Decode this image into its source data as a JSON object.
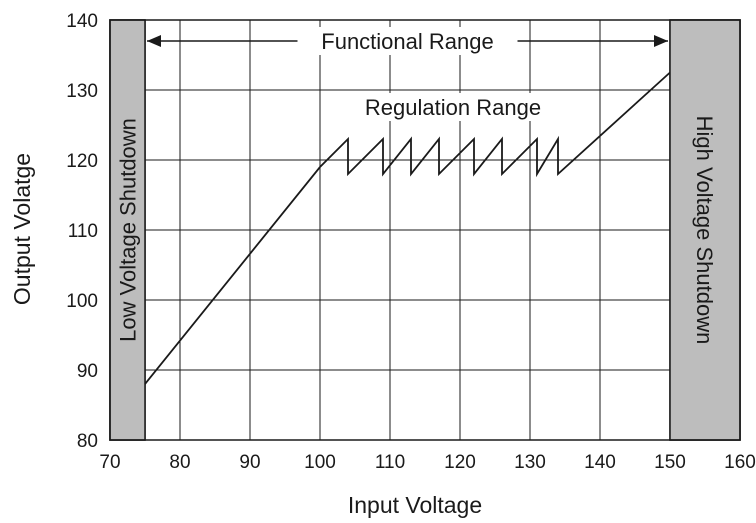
{
  "chart_data": {
    "type": "line",
    "title": "",
    "xlabel": "Input Voltage",
    "ylabel": "Output Volatge",
    "xlim": [
      70,
      160
    ],
    "ylim": [
      80,
      140
    ],
    "xticks": [
      70,
      80,
      90,
      100,
      110,
      120,
      130,
      140,
      150,
      160
    ],
    "yticks": [
      80,
      90,
      100,
      110,
      120,
      130,
      140
    ],
    "grid": true,
    "series": [
      {
        "name": "",
        "color": "#1a1a1a",
        "x": [
          75,
          100,
          104,
          104,
          109,
          109,
          113,
          113,
          117,
          117,
          122,
          122,
          126,
          126,
          131,
          131,
          134,
          134,
          150
        ],
        "y": [
          88,
          119,
          123,
          118,
          123,
          118,
          123,
          118,
          123,
          118,
          123,
          118,
          123,
          118,
          123,
          118,
          123,
          118,
          132.5
        ]
      }
    ],
    "regions": [
      {
        "label": "Low Voltage Shutdown",
        "x_range": [
          70,
          75
        ],
        "color": "#bdbdbd"
      },
      {
        "label": "High Voltage Shutdown",
        "x_range": [
          150,
          160
        ],
        "color": "#bdbdbd"
      }
    ],
    "annotations": [
      {
        "text": "Functional Range",
        "arrow_from_x": 75,
        "arrow_to_x": 150,
        "y": 137
      },
      {
        "text": "Regulation Range",
        "x": 120,
        "y": 127
      }
    ]
  }
}
